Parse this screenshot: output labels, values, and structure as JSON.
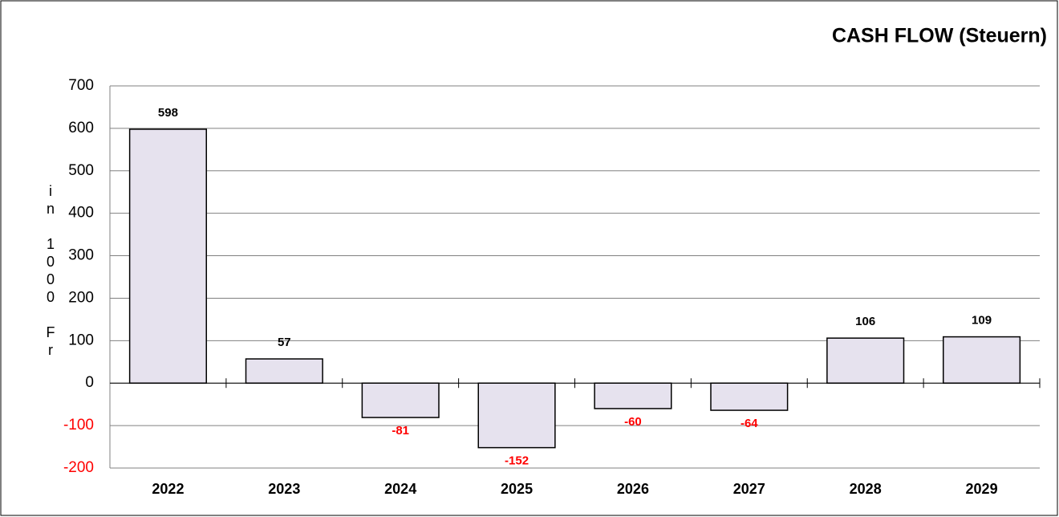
{
  "chart_data": {
    "type": "bar",
    "title": "CASH FLOW (Steuern)",
    "y_label": "in 1000 Fr",
    "categories": [
      "2022",
      "2023",
      "2024",
      "2025",
      "2026",
      "2027",
      "2028",
      "2029"
    ],
    "values": [
      598,
      57,
      -81,
      -152,
      -60,
      -64,
      106,
      109
    ],
    "color": "#e6e2ee",
    "negative_label_color": "#ff0000",
    "ylim": [
      -200,
      700
    ],
    "yticks": [
      -200,
      -100,
      0,
      100,
      200,
      300,
      400,
      500,
      600,
      700
    ],
    "grid": true
  }
}
